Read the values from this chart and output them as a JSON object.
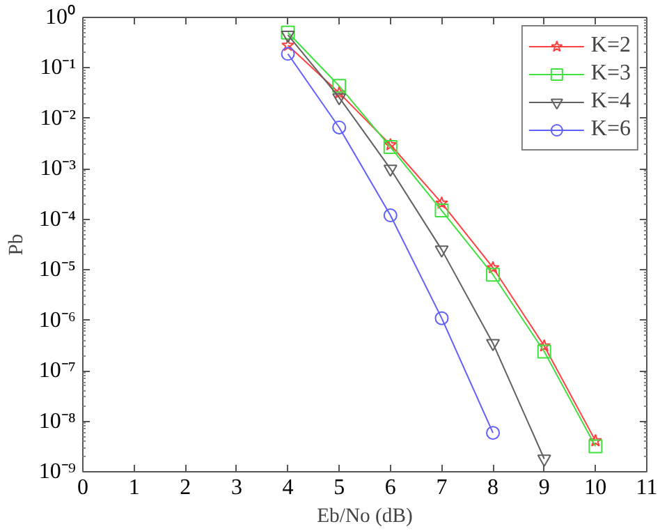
{
  "chart_data": {
    "type": "line",
    "xlabel": "Eb/No (dB)",
    "ylabel": "Pb",
    "log": "y",
    "grid": false,
    "legend": "top right",
    "xlim": [
      0,
      11
    ],
    "xticks": [
      0,
      1,
      2,
      3,
      4,
      5,
      6,
      7,
      8,
      9,
      10,
      11
    ],
    "ylim": [
      1e-09,
      1
    ],
    "yticks": [
      {
        "value": 1,
        "label": "10⁰"
      },
      {
        "value": 0.1,
        "label": "10⁻¹"
      },
      {
        "value": 0.01,
        "label": "10⁻²"
      },
      {
        "value": 0.001,
        "label": "10⁻³"
      },
      {
        "value": 0.0001,
        "label": "10⁻⁴"
      },
      {
        "value": 1e-05,
        "label": "10⁻⁵"
      },
      {
        "value": 1e-06,
        "label": "10⁻⁶"
      },
      {
        "value": 1e-07,
        "label": "10⁻⁷"
      },
      {
        "value": 1e-08,
        "label": "10⁻⁸"
      },
      {
        "value": 1e-09,
        "label": "10⁻⁹"
      }
    ],
    "x": [
      4,
      5,
      6,
      7,
      8,
      9,
      10
    ],
    "series": [
      {
        "name": "K=2",
        "color": "#ff4040",
        "marker": "star",
        "values": [
          0.28,
          0.032,
          0.003,
          0.00021,
          1.1e-05,
          3.1e-07,
          4.1e-09
        ]
      },
      {
        "name": "K=3",
        "color": "#40e040",
        "marker": "square",
        "values": [
          0.5,
          0.044,
          0.0027,
          0.00015,
          8e-06,
          2.4e-07,
          3.2e-09
        ]
      },
      {
        "name": "K=4",
        "color": "#606060",
        "marker": "triangle",
        "values": [
          0.45,
          0.026,
          0.001,
          2.5e-05,
          3.5e-07,
          1.8e-09,
          null
        ]
      },
      {
        "name": "K=6",
        "color": "#6060ff",
        "marker": "circle",
        "values": [
          0.19,
          0.0066,
          0.00012,
          1.1e-06,
          5.9e-09,
          null,
          null
        ]
      }
    ]
  }
}
